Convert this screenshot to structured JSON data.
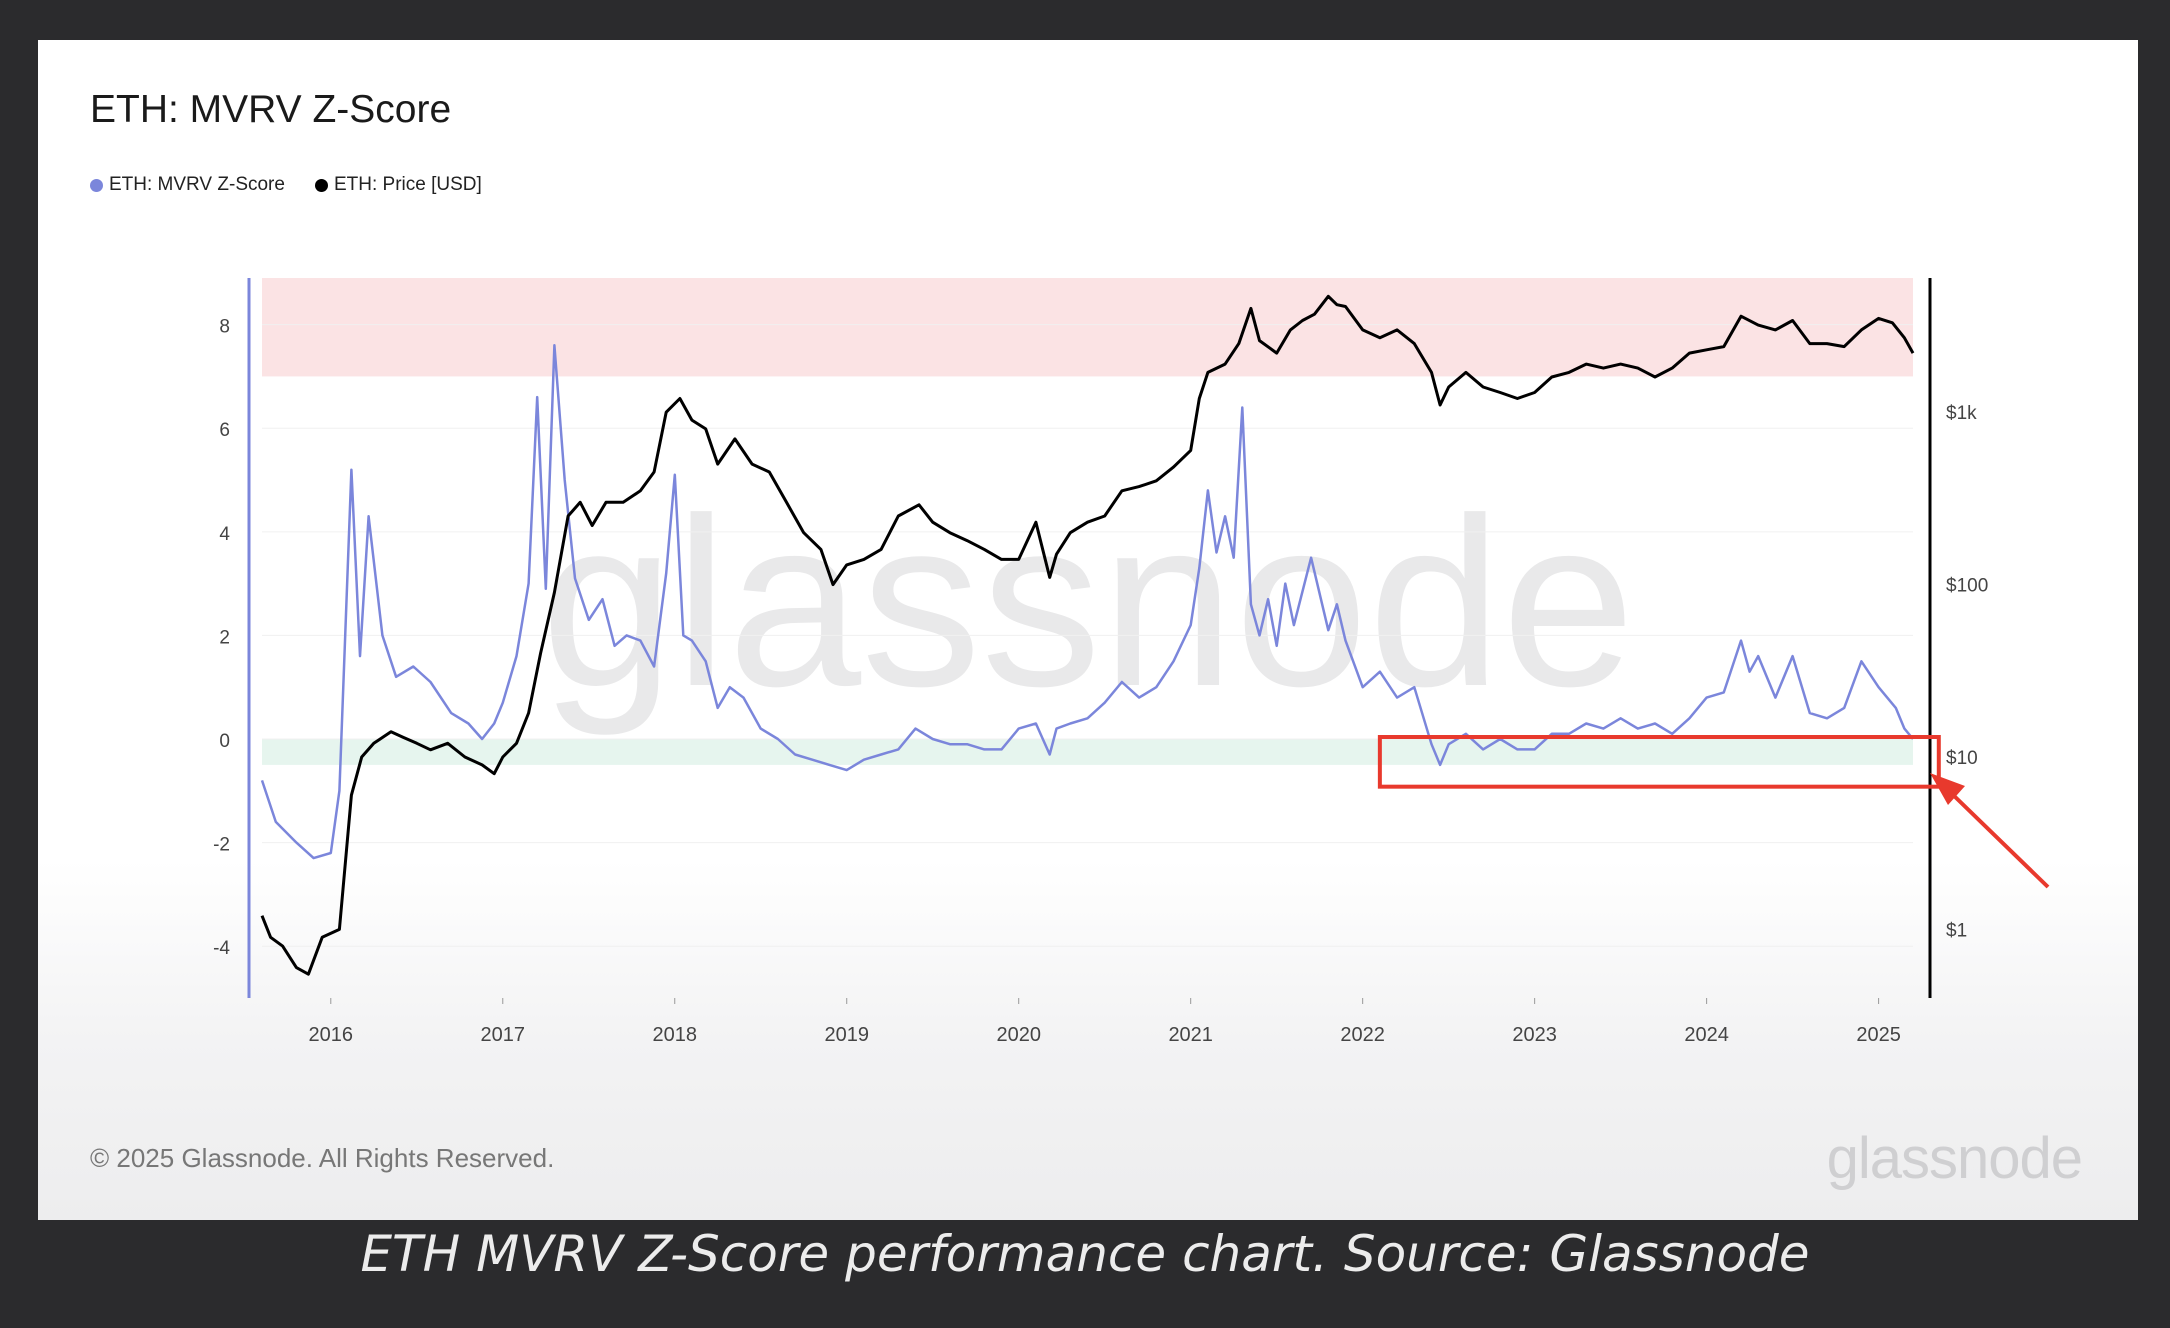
{
  "caption": "ETH MVRV Z-Score performance chart. Source: Glassnode",
  "footer": {
    "copyright": "© 2025 Glassnode. All Rights Reserved.",
    "logo_text": "glassnode"
  },
  "colors": {
    "zscore": "#7b86db",
    "price": "#000000",
    "high_zone": "#fbe3e4",
    "low_zone": "#e6f5ee",
    "annotation": "#e8392d",
    "background": "#2b2b2d"
  },
  "chart_data": {
    "type": "line",
    "title": "ETH: MVRV Z-Score",
    "legend": [
      "ETH: MVRV Z-Score",
      "ETH: Price [USD]"
    ],
    "watermark": "glassnode",
    "x_ticks": [
      "2016",
      "2017",
      "2018",
      "2019",
      "2020",
      "2021",
      "2022",
      "2023",
      "2024",
      "2025"
    ],
    "y_left_ticks": [
      "8",
      "6",
      "4",
      "2",
      "0",
      "-2",
      "-4"
    ],
    "y_left_range": [
      -5,
      8.9
    ],
    "y_right_ticks": [
      "$1k",
      "$100",
      "$10",
      "$1"
    ],
    "y_right_scale": "log",
    "y_right_range": [
      0.4,
      6000
    ],
    "zones": [
      {
        "name": "high",
        "from": 7,
        "to": 8.9
      },
      {
        "name": "low",
        "from": -0.5,
        "to": 0
      }
    ],
    "x_range": [
      2015.6,
      2025.2
    ],
    "series": [
      {
        "name": "ETH: MVRV Z-Score",
        "x": [
          2015.6,
          2015.68,
          2015.8,
          2015.9,
          2016.0,
          2016.05,
          2016.12,
          2016.17,
          2016.22,
          2016.3,
          2016.38,
          2016.48,
          2016.58,
          2016.7,
          2016.8,
          2016.88,
          2016.95,
          2017.0,
          2017.08,
          2017.15,
          2017.2,
          2017.25,
          2017.3,
          2017.36,
          2017.42,
          2017.5,
          2017.58,
          2017.65,
          2017.72,
          2017.8,
          2017.88,
          2017.95,
          2018.0,
          2018.05,
          2018.1,
          2018.18,
          2018.25,
          2018.32,
          2018.4,
          2018.5,
          2018.6,
          2018.7,
          2018.8,
          2018.9,
          2019.0,
          2019.1,
          2019.2,
          2019.3,
          2019.4,
          2019.5,
          2019.6,
          2019.7,
          2019.8,
          2019.9,
          2020.0,
          2020.1,
          2020.18,
          2020.22,
          2020.3,
          2020.4,
          2020.5,
          2020.6,
          2020.7,
          2020.8,
          2020.9,
          2021.0,
          2021.05,
          2021.1,
          2021.15,
          2021.2,
          2021.25,
          2021.3,
          2021.35,
          2021.4,
          2021.45,
          2021.5,
          2021.55,
          2021.6,
          2021.7,
          2021.8,
          2021.85,
          2021.9,
          2022.0,
          2022.1,
          2022.2,
          2022.3,
          2022.4,
          2022.45,
          2022.5,
          2022.6,
          2022.7,
          2022.8,
          2022.9,
          2023.0,
          2023.1,
          2023.2,
          2023.3,
          2023.4,
          2023.5,
          2023.6,
          2023.7,
          2023.8,
          2023.9,
          2024.0,
          2024.1,
          2024.2,
          2024.25,
          2024.3,
          2024.4,
          2024.5,
          2024.6,
          2024.7,
          2024.8,
          2024.9,
          2025.0,
          2025.05,
          2025.1,
          2025.15,
          2025.2
        ],
        "values": [
          -0.8,
          -1.6,
          -2.0,
          -2.3,
          -2.2,
          -1.0,
          5.2,
          1.6,
          4.3,
          2.0,
          1.2,
          1.4,
          1.1,
          0.5,
          0.3,
          0.0,
          0.3,
          0.7,
          1.6,
          3.0,
          6.6,
          2.9,
          7.6,
          5.0,
          3.1,
          2.3,
          2.7,
          1.8,
          2.0,
          1.9,
          1.4,
          3.2,
          5.1,
          2.0,
          1.9,
          1.5,
          0.6,
          1.0,
          0.8,
          0.2,
          0.0,
          -0.3,
          -0.4,
          -0.5,
          -0.6,
          -0.4,
          -0.3,
          -0.2,
          0.2,
          0.0,
          -0.1,
          -0.1,
          -0.2,
          -0.2,
          0.2,
          0.3,
          -0.3,
          0.2,
          0.3,
          0.4,
          0.7,
          1.1,
          0.8,
          1.0,
          1.5,
          2.2,
          3.3,
          4.8,
          3.6,
          4.3,
          3.5,
          6.4,
          2.6,
          2.0,
          2.7,
          1.8,
          3.0,
          2.2,
          3.5,
          2.1,
          2.6,
          1.9,
          1.0,
          1.3,
          0.8,
          1.0,
          -0.1,
          -0.5,
          -0.1,
          0.1,
          -0.2,
          0.0,
          -0.2,
          -0.2,
          0.1,
          0.1,
          0.3,
          0.2,
          0.4,
          0.2,
          0.3,
          0.1,
          0.4,
          0.8,
          0.9,
          1.9,
          1.3,
          1.6,
          0.8,
          1.6,
          0.5,
          0.4,
          0.6,
          1.5,
          1.0,
          0.8,
          0.6,
          0.2,
          0.0
        ]
      },
      {
        "name": "ETH: Price [USD]",
        "x": [
          2015.6,
          2015.65,
          2015.72,
          2015.8,
          2015.87,
          2015.95,
          2016.05,
          2016.12,
          2016.18,
          2016.25,
          2016.35,
          2016.42,
          2016.5,
          2016.58,
          2016.68,
          2016.78,
          2016.88,
          2016.95,
          2017.0,
          2017.08,
          2017.15,
          2017.22,
          2017.3,
          2017.38,
          2017.45,
          2017.52,
          2017.6,
          2017.7,
          2017.8,
          2017.88,
          2017.95,
          2018.03,
          2018.1,
          2018.18,
          2018.25,
          2018.35,
          2018.45,
          2018.55,
          2018.65,
          2018.75,
          2018.85,
          2018.92,
          2019.0,
          2019.1,
          2019.2,
          2019.3,
          2019.42,
          2019.5,
          2019.6,
          2019.7,
          2019.8,
          2019.9,
          2020.0,
          2020.1,
          2020.18,
          2020.22,
          2020.3,
          2020.4,
          2020.5,
          2020.6,
          2020.7,
          2020.8,
          2020.9,
          2021.0,
          2021.05,
          2021.1,
          2021.2,
          2021.28,
          2021.35,
          2021.4,
          2021.5,
          2021.58,
          2021.65,
          2021.72,
          2021.8,
          2021.85,
          2021.9,
          2022.0,
          2022.1,
          2022.2,
          2022.3,
          2022.4,
          2022.45,
          2022.5,
          2022.6,
          2022.7,
          2022.8,
          2022.9,
          2023.0,
          2023.1,
          2023.2,
          2023.3,
          2023.4,
          2023.5,
          2023.6,
          2023.7,
          2023.8,
          2023.9,
          2024.0,
          2024.1,
          2024.2,
          2024.3,
          2024.4,
          2024.5,
          2024.6,
          2024.7,
          2024.8,
          2024.9,
          2025.0,
          2025.08,
          2025.15,
          2025.2
        ],
        "values": [
          1.2,
          0.9,
          0.8,
          0.6,
          0.55,
          0.9,
          1.0,
          6,
          10,
          12,
          14,
          13,
          12,
          11,
          12,
          10,
          9,
          8,
          10,
          12,
          18,
          40,
          90,
          250,
          300,
          220,
          300,
          300,
          350,
          450,
          1000,
          1200,
          900,
          800,
          500,
          700,
          500,
          450,
          300,
          200,
          160,
          100,
          130,
          140,
          160,
          250,
          290,
          230,
          200,
          180,
          160,
          140,
          140,
          230,
          110,
          150,
          200,
          230,
          250,
          350,
          370,
          400,
          480,
          600,
          1200,
          1700,
          1900,
          2500,
          4000,
          2600,
          2200,
          3000,
          3400,
          3700,
          4700,
          4200,
          4100,
          3000,
          2700,
          3000,
          2500,
          1700,
          1100,
          1400,
          1700,
          1400,
          1300,
          1200,
          1300,
          1600,
          1700,
          1900,
          1800,
          1900,
          1800,
          1600,
          1800,
          2200,
          2300,
          2400,
          3600,
          3200,
          3000,
          3400,
          2500,
          2500,
          2400,
          3000,
          3500,
          3300,
          2700,
          2200
        ]
      }
    ],
    "annotation": {
      "type": "highlight-box",
      "x_from": 2022.1,
      "x_to": 2025.35,
      "y_from": -0.65,
      "y_to": 0.0,
      "arrow": true
    }
  }
}
